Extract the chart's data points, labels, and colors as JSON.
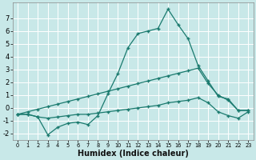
{
  "bg_color": "#c8e8e8",
  "grid_color": "#ffffff",
  "line_color": "#1a7a6e",
  "xlabel": "Humidex (Indice chaleur)",
  "xlabel_fontsize": 7,
  "tick_fontsize": 6,
  "xlim": [
    -0.5,
    23.5
  ],
  "ylim": [
    -2.5,
    8.2
  ],
  "xticks": [
    0,
    1,
    2,
    3,
    4,
    5,
    6,
    7,
    8,
    9,
    10,
    11,
    12,
    13,
    14,
    15,
    16,
    17,
    18,
    19,
    20,
    21,
    22,
    23
  ],
  "yticks": [
    -2,
    -1,
    0,
    1,
    2,
    3,
    4,
    5,
    6,
    7
  ],
  "line1_x": [
    0,
    1,
    2,
    3,
    4,
    5,
    6,
    7,
    8,
    9,
    10,
    11,
    12,
    13,
    14,
    15,
    16,
    17,
    18,
    19,
    20,
    21,
    22,
    23
  ],
  "line1_y": [
    -0.5,
    -0.5,
    -0.7,
    -2.1,
    -1.5,
    -1.2,
    -1.1,
    -1.3,
    -0.6,
    1.1,
    2.7,
    4.7,
    5.8,
    6.0,
    6.2,
    7.7,
    6.5,
    5.4,
    3.3,
    2.1,
    0.9,
    0.7,
    -0.2,
    -0.2
  ],
  "line2_x": [
    0,
    1,
    2,
    3,
    4,
    5,
    6,
    7,
    8,
    9,
    10,
    11,
    12,
    13,
    14,
    15,
    16,
    17,
    18,
    19,
    20,
    21,
    22,
    23
  ],
  "line2_y": [
    -0.5,
    -0.3,
    -0.1,
    0.1,
    0.3,
    0.5,
    0.7,
    0.9,
    1.1,
    1.3,
    1.5,
    1.7,
    1.9,
    2.1,
    2.3,
    2.5,
    2.7,
    2.9,
    3.1,
    1.9,
    1.0,
    0.6,
    -0.2,
    -0.2
  ],
  "line3_x": [
    0,
    1,
    2,
    3,
    4,
    5,
    6,
    7,
    8,
    9,
    10,
    11,
    12,
    13,
    14,
    15,
    16,
    17,
    18,
    19,
    20,
    21,
    22,
    23
  ],
  "line3_y": [
    -0.5,
    -0.5,
    -0.7,
    -0.8,
    -0.7,
    -0.6,
    -0.5,
    -0.5,
    -0.4,
    -0.3,
    -0.2,
    -0.1,
    0.0,
    0.1,
    0.2,
    0.4,
    0.5,
    0.6,
    0.8,
    0.4,
    -0.3,
    -0.6,
    -0.8,
    -0.3
  ]
}
